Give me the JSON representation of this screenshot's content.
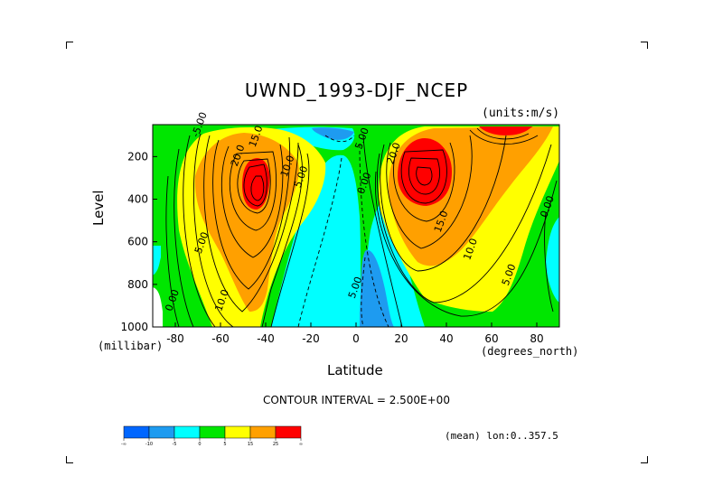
{
  "chart_data": {
    "type": "heatmap",
    "title": "UWND_1993-DJF_NCEP",
    "units_label": "(units:m/s)",
    "xlabel": "Latitude",
    "ylabel": "Level",
    "x_units": "(degrees_north)",
    "y_units": "(millibar)",
    "xlim": [
      -90,
      90
    ],
    "ylim": [
      1000,
      50
    ],
    "y_reversed": true,
    "x_ticks": [
      "-80",
      "-60",
      "-40",
      "-20",
      "0",
      "20",
      "40",
      "60",
      "80"
    ],
    "x_tick_values": [
      -80,
      -60,
      -40,
      -20,
      0,
      20,
      40,
      60,
      80
    ],
    "y_ticks": [
      "200",
      "400",
      "600",
      "800",
      "1000"
    ],
    "y_tick_values": [
      200,
      400,
      600,
      800,
      1000
    ],
    "contour_interval_text": "CONTOUR INTERVAL = 2.500E+00",
    "subtitle": "(mean) lon:0..357.5",
    "contour_labels": [
      {
        "text": "-5.00",
        "x": -68,
        "y": 55
      },
      {
        "text": "15.0",
        "x": -43,
        "y": 110
      },
      {
        "text": "20.0",
        "x": -51,
        "y": 200
      },
      {
        "text": "10.0",
        "x": -29,
        "y": 250
      },
      {
        "text": "5.00",
        "x": -23,
        "y": 300
      },
      {
        "text": "5.00",
        "x": -67,
        "y": 610
      },
      {
        "text": "10.0",
        "x": -58,
        "y": 880
      },
      {
        "text": "0.00",
        "x": -80,
        "y": 880
      },
      {
        "text": "5.00",
        "x": 4,
        "y": 120
      },
      {
        "text": "0.00",
        "x": 5,
        "y": 330
      },
      {
        "text": "20.0",
        "x": 18,
        "y": 190
      },
      {
        "text": "15.0",
        "x": 39,
        "y": 510
      },
      {
        "text": "10.0",
        "x": 52,
        "y": 640
      },
      {
        "text": "5.00",
        "x": 69,
        "y": 760
      },
      {
        "text": "0.00",
        "x": 86,
        "y": 440
      },
      {
        "text": "5.00",
        "x": 1,
        "y": 820
      }
    ],
    "colorbar": {
      "colors": [
        "#0066ff",
        "#1e9bf0",
        "#00ffff",
        "#00e600",
        "#ffff00",
        "#ffa000",
        "#ff0000"
      ],
      "labels": [
        "-∞",
        "-10",
        "-5",
        "0",
        "5",
        "15",
        "25",
        "∞"
      ]
    }
  }
}
